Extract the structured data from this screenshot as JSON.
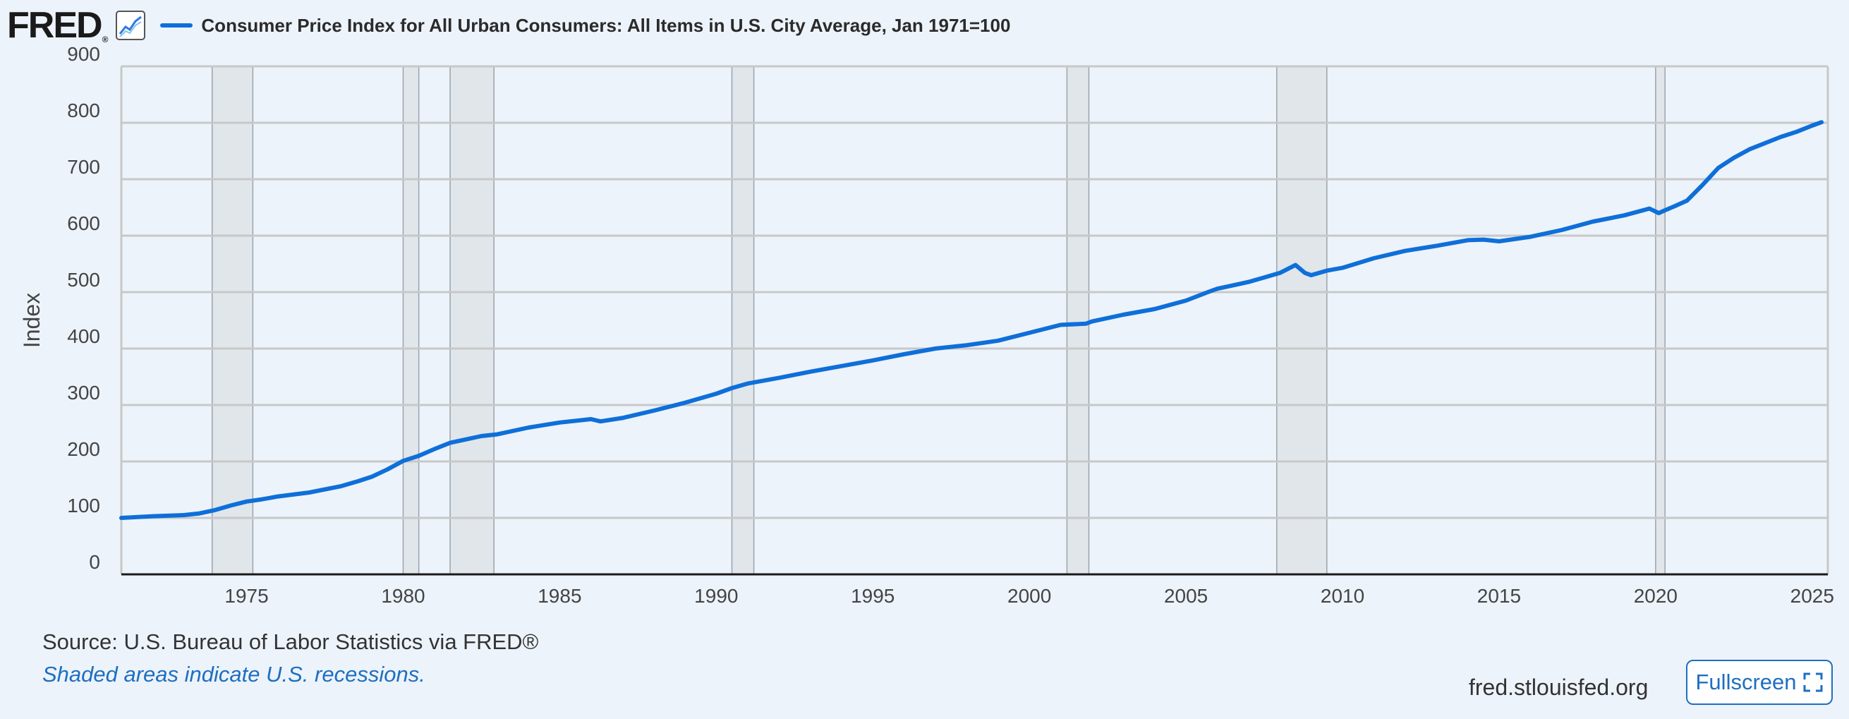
{
  "header": {
    "logo": "FRED",
    "logo_mark": "®",
    "title": "Consumer Price Index for All Urban Consumers: All Items in U.S. City Average, Jan 1971=100"
  },
  "icons": {
    "chart": "line-chart-icon",
    "fullscreen": "fullscreen-expand-icon"
  },
  "colors": {
    "line": "#0e6fd9",
    "recession": "#e1e6eb",
    "background": "#edf3fb"
  },
  "footer": {
    "source": "Source: U.S. Bureau of Labor Statistics via FRED®",
    "note": "Shaded areas indicate U.S. recessions.",
    "site": "fred.stlouisfed.org",
    "fullscreen_label": "Fullscreen"
  },
  "chart_data": {
    "type": "line",
    "title": "Consumer Price Index for All Urban Consumers: All Items in U.S. City Average, Jan 1971=100",
    "xlabel": "",
    "ylabel": "Index",
    "xlim": [
      1971.0,
      2025.5
    ],
    "ylim": [
      0,
      900
    ],
    "x_ticks": [
      "1975",
      "1980",
      "1985",
      "1990",
      "1995",
      "2000",
      "2005",
      "2010",
      "2015",
      "2020",
      "2025"
    ],
    "y_ticks": [
      "0",
      "100",
      "200",
      "300",
      "400",
      "500",
      "600",
      "700",
      "800",
      "900"
    ],
    "grid": true,
    "recessions": [
      [
        1973.9,
        1975.2
      ],
      [
        1980.0,
        1980.5
      ],
      [
        1981.5,
        1982.9
      ],
      [
        1990.5,
        1991.2
      ],
      [
        2001.2,
        2001.9
      ],
      [
        2007.9,
        2009.5
      ],
      [
        2020.0,
        2020.3
      ]
    ],
    "series": [
      {
        "x": [
          1971.0,
          1972.0,
          1973.0,
          1973.5,
          1974.0,
          1974.5,
          1975.0,
          1975.5,
          1976.0,
          1977.0,
          1978.0,
          1978.5,
          1979.0,
          1979.5,
          1980.0,
          1980.5,
          1981.0,
          1981.5,
          1982.0,
          1982.5,
          1983.0,
          1984.0,
          1985.0,
          1986.0,
          1986.3,
          1987.0,
          1988.0,
          1989.0,
          1990.0,
          1990.5,
          1991.0,
          1992.0,
          1993.0,
          1994.0,
          1995.0,
          1996.0,
          1997.0,
          1998.0,
          1999.0,
          2000.0,
          2001.0,
          2001.8,
          2002.0,
          2003.0,
          2004.0,
          2005.0,
          2005.7,
          2006.0,
          2006.5,
          2007.0,
          2007.5,
          2008.0,
          2008.5,
          2008.8,
          2009.0,
          2009.5,
          2010.0,
          2011.0,
          2012.0,
          2013.0,
          2014.0,
          2014.5,
          2015.0,
          2016.0,
          2017.0,
          2018.0,
          2019.0,
          2019.8,
          2020.1,
          2020.3,
          2020.6,
          2021.0,
          2021.5,
          2022.0,
          2022.5,
          2023.0,
          2024.0,
          2024.5,
          2025.0,
          2025.3
        ],
        "values": [
          100,
          103,
          105,
          108,
          114,
          122,
          129,
          133,
          138,
          145,
          156,
          164,
          173,
          186,
          201,
          210,
          222,
          233,
          239,
          245,
          248,
          260,
          269,
          275,
          271,
          277,
          290,
          304,
          320,
          330,
          338,
          348,
          359,
          369,
          379,
          390,
          400,
          406,
          414,
          428,
          442,
          444,
          448,
          460,
          470,
          485,
          500,
          506,
          512,
          518,
          526,
          534,
          548,
          534,
          530,
          538,
          543,
          560,
          573,
          582,
          592,
          593,
          590,
          598,
          610,
          625,
          636,
          648,
          640,
          645,
          652,
          662,
          690,
          720,
          738,
          753,
          775,
          784,
          795,
          801
        ]
      }
    ]
  }
}
